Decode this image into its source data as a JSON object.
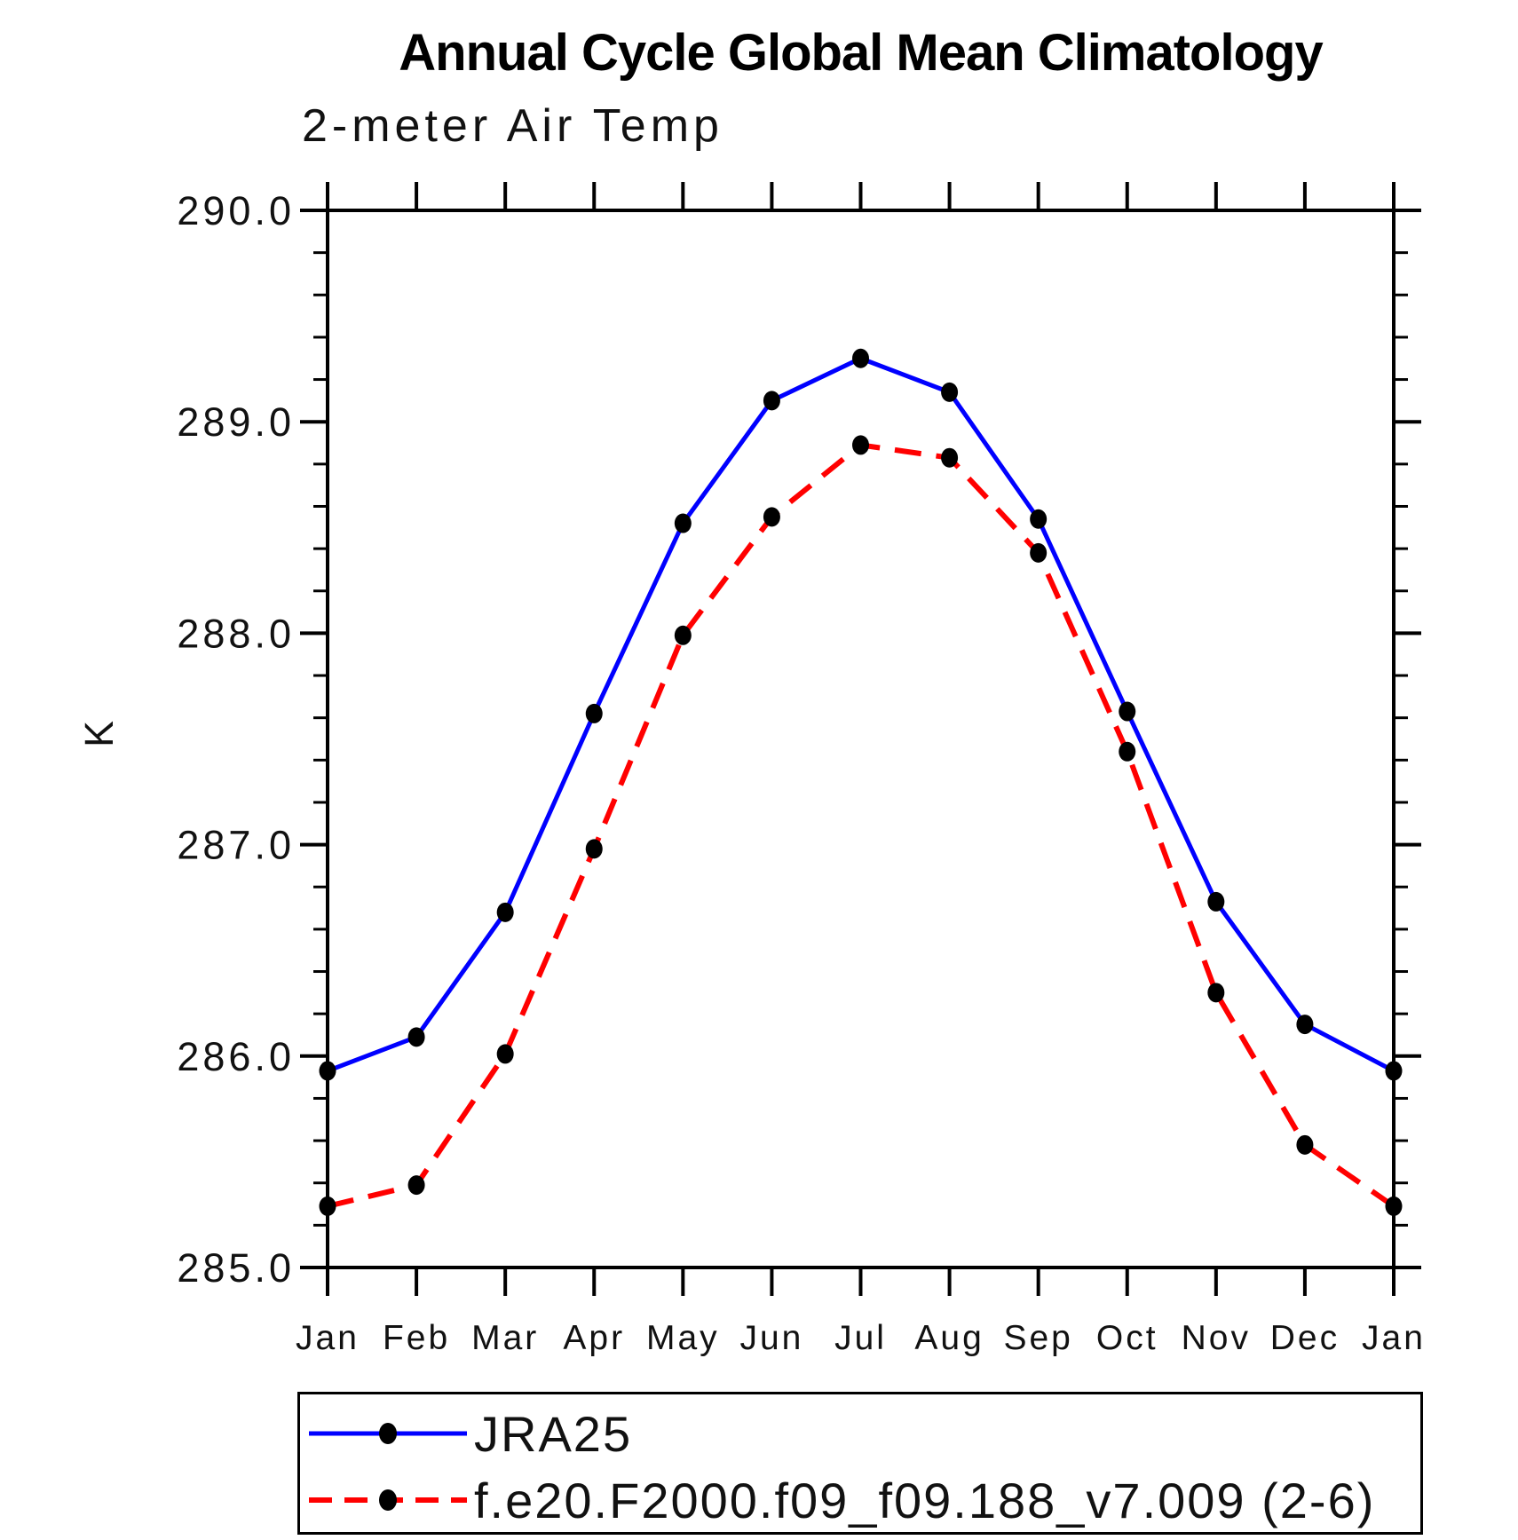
{
  "title": "Annual Cycle Global Mean Climatology",
  "subtitle": "2-meter Air Temp",
  "y_axis": {
    "label": "K",
    "tick_labels": [
      "285.0",
      "286.0",
      "287.0",
      "288.0",
      "289.0",
      "290.0"
    ]
  },
  "x_axis": {
    "tick_labels": [
      "Jan",
      "Feb",
      "Mar",
      "Apr",
      "May",
      "Jun",
      "Jul",
      "Aug",
      "Sep",
      "Oct",
      "Nov",
      "Dec",
      "Jan"
    ]
  },
  "chart_data": {
    "type": "line",
    "title": "Annual Cycle Global Mean Climatology",
    "subtitle": "2-meter Air Temp",
    "xlabel": "",
    "ylabel": "K",
    "categories": [
      "Jan",
      "Feb",
      "Mar",
      "Apr",
      "May",
      "Jun",
      "Jul",
      "Aug",
      "Sep",
      "Oct",
      "Nov",
      "Dec",
      "Jan"
    ],
    "ylim": [
      285.0,
      290.0
    ],
    "ytick_interval": 1.0,
    "minor_tick_interval": 0.2,
    "grid": false,
    "legend_position": "bottom",
    "series": [
      {
        "name": "JRA25",
        "color": "#0000ff",
        "line_style": "solid",
        "line_width": 5,
        "marker": "filled-circle",
        "marker_color": "#000000",
        "values": [
          285.93,
          286.09,
          286.68,
          287.62,
          288.52,
          289.1,
          289.3,
          289.14,
          288.54,
          287.63,
          286.73,
          286.15,
          285.93
        ]
      },
      {
        "name": "f.e20.F2000.f09_f09.188_v7.009 (2-6)",
        "color": "#ff0000",
        "line_style": "dashed",
        "line_width": 6,
        "marker": "filled-circle",
        "marker_color": "#000000",
        "values": [
          285.29,
          285.39,
          286.01,
          286.98,
          287.99,
          288.55,
          288.89,
          288.83,
          288.38,
          287.44,
          286.3,
          285.58,
          285.29
        ]
      }
    ]
  },
  "legend": {
    "items": [
      {
        "label": "JRA25"
      },
      {
        "label": "f.e20.F2000.f09_f09.188_v7.009 (2-6)"
      }
    ]
  },
  "colors": {
    "background": "#ffffff",
    "axis": "#000000",
    "text": "#111111",
    "jra25_line": "#0000ff",
    "model_line": "#ff0000",
    "marker": "#000000"
  }
}
